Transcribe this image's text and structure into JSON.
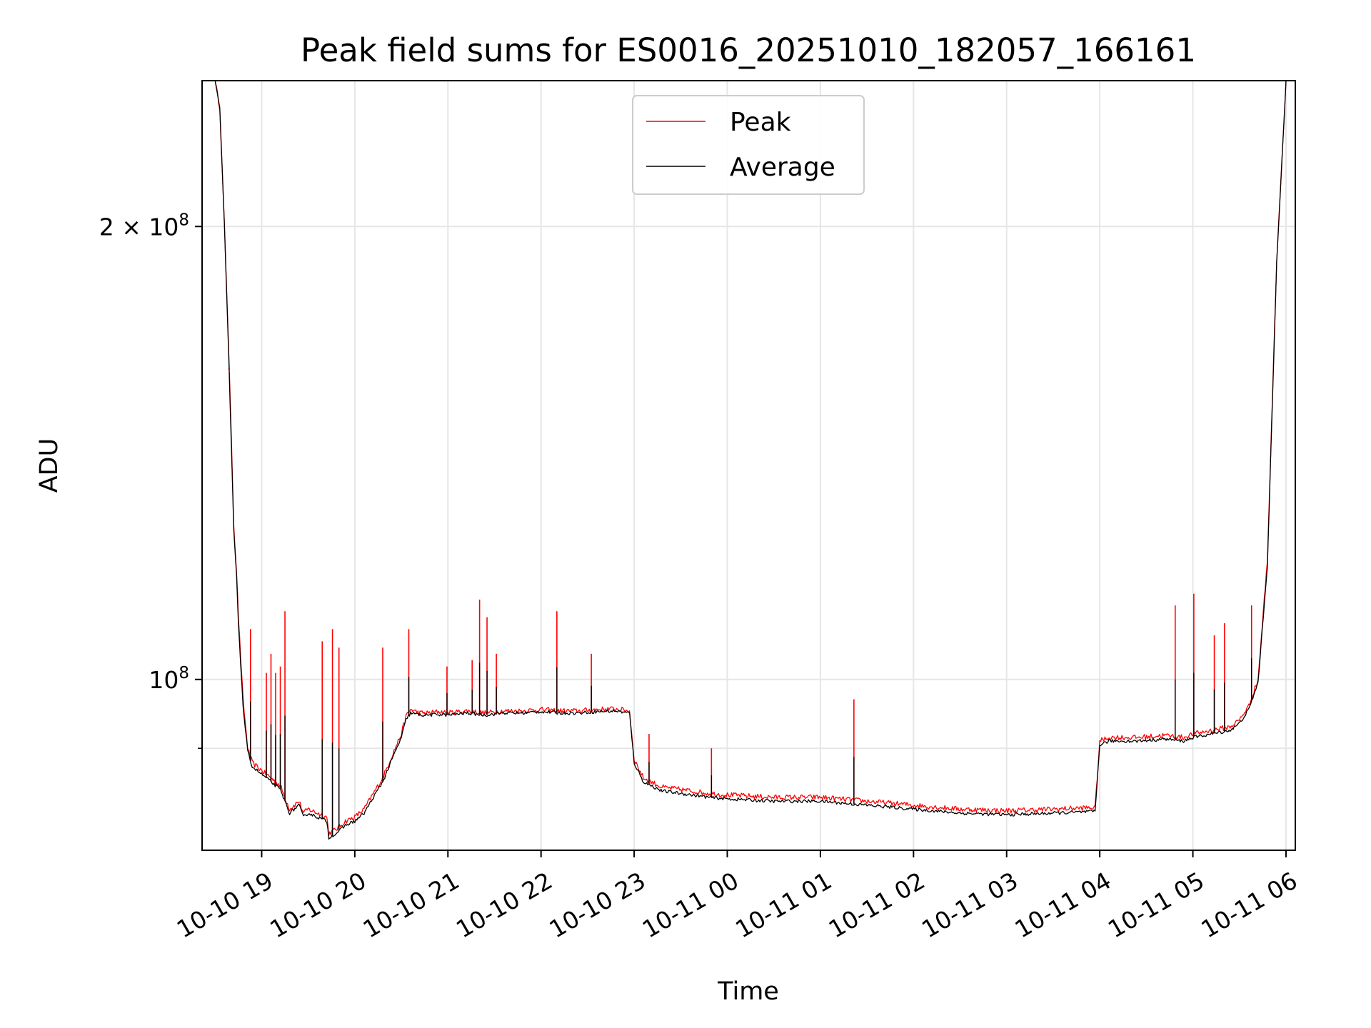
{
  "chart_data": {
    "type": "line",
    "title": "Peak field sums for ES0016_20251010_182057_166161",
    "xlabel": "Time",
    "ylabel": "ADU",
    "yscale": "log",
    "grid": true,
    "legend_position": "top-center",
    "x_range_hours": [
      -0.64,
      11.1
    ],
    "y_range": [
      77000000,
      250000000
    ],
    "x_ticks": [
      {
        "hour": 0,
        "label": "10-10 19"
      },
      {
        "hour": 1,
        "label": "10-10 20"
      },
      {
        "hour": 2,
        "label": "10-10 21"
      },
      {
        "hour": 3,
        "label": "10-10 22"
      },
      {
        "hour": 4,
        "label": "10-10 23"
      },
      {
        "hour": 5,
        "label": "10-11 00"
      },
      {
        "hour": 6,
        "label": "10-11 01"
      },
      {
        "hour": 7,
        "label": "10-11 02"
      },
      {
        "hour": 8,
        "label": "10-11 03"
      },
      {
        "hour": 9,
        "label": "10-11 04"
      },
      {
        "hour": 10,
        "label": "10-11 05"
      },
      {
        "hour": 11,
        "label": "10-11 06"
      }
    ],
    "y_ticks_labeled": [
      {
        "value": 100000000,
        "label": "10^8",
        "base": "10",
        "exp": "8"
      },
      {
        "value": 200000000,
        "label": "2×10^8",
        "base": "2 × 10",
        "exp": "8"
      }
    ],
    "y_minor_gridlines": [
      90000000
    ],
    "series": [
      {
        "name": "Peak",
        "color": "#ff0000",
        "x_hours": [
          -0.5,
          -0.45,
          -0.4,
          -0.35,
          -0.3,
          -0.27,
          -0.25,
          -0.2,
          -0.15,
          -0.1,
          -0.05,
          0,
          0.1,
          0.2,
          0.3,
          0.4,
          0.45,
          0.5,
          0.6,
          0.7,
          0.72,
          0.8,
          0.9,
          1.0,
          1.1,
          1.2,
          1.3,
          1.4,
          1.5,
          1.55,
          1.6,
          1.7,
          1.8,
          1.9,
          2.0,
          2.2,
          2.4,
          2.6,
          2.8,
          3.0,
          3.2,
          3.4,
          3.6,
          3.8,
          3.95,
          4.0,
          4.1,
          4.3,
          4.5,
          4.8,
          5.0,
          5.5,
          6.0,
          6.5,
          7.0,
          7.5,
          8.0,
          8.5,
          8.95,
          9.0,
          9.1,
          9.4,
          9.7,
          9.9,
          10.0,
          10.2,
          10.4,
          10.5,
          10.6,
          10.7,
          10.8,
          10.9,
          11.0
        ],
        "y": [
          250000000,
          240000000,
          200000000,
          163000000,
          127000000,
          118000000,
          110000000,
          97000000,
          90000000,
          88000000,
          87500000,
          87000000,
          86000000,
          85000000,
          82000000,
          83000000,
          81500000,
          82000000,
          81500000,
          81000000,
          79000000,
          79500000,
          80500000,
          81000000,
          82000000,
          84000000,
          86000000,
          89000000,
          92000000,
          94500000,
          95500000,
          95000000,
          95000000,
          95200000,
          95000000,
          95300000,
          95000000,
          95300000,
          95300000,
          95500000,
          95300000,
          95300000,
          95500000,
          95600000,
          95300000,
          88500000,
          86000000,
          84800000,
          84500000,
          84000000,
          83800000,
          83500000,
          83500000,
          83000000,
          82500000,
          82000000,
          81800000,
          82000000,
          82200000,
          91000000,
          91500000,
          91500000,
          91800000,
          91500000,
          92000000,
          92500000,
          93000000,
          94000000,
          96000000,
          100000000,
          120000000,
          190000000,
          250000000
        ]
      },
      {
        "name": "Average",
        "color": "#000000",
        "x_hours": [
          -0.5,
          -0.45,
          -0.4,
          -0.35,
          -0.3,
          -0.27,
          -0.25,
          -0.2,
          -0.15,
          -0.1,
          -0.05,
          0,
          0.1,
          0.2,
          0.3,
          0.4,
          0.45,
          0.5,
          0.6,
          0.7,
          0.72,
          0.8,
          0.9,
          1.0,
          1.1,
          1.2,
          1.3,
          1.4,
          1.5,
          1.55,
          1.6,
          1.7,
          1.8,
          1.9,
          2.0,
          2.2,
          2.4,
          2.6,
          2.8,
          3.0,
          3.2,
          3.4,
          3.6,
          3.8,
          3.95,
          4.0,
          4.1,
          4.3,
          4.5,
          4.8,
          5.0,
          5.5,
          6.0,
          6.5,
          7.0,
          7.5,
          8.0,
          8.5,
          8.95,
          9.0,
          9.1,
          9.4,
          9.7,
          9.9,
          10.0,
          10.2,
          10.4,
          10.5,
          10.6,
          10.7,
          10.8,
          10.9,
          11.0
        ],
        "y": [
          250000000,
          240000000,
          200000000,
          161000000,
          126000000,
          117000000,
          109000000,
          96000000,
          89500000,
          87500000,
          87000000,
          86500000,
          85500000,
          84500000,
          81500000,
          82500000,
          81000000,
          81500000,
          81000000,
          80500000,
          78500000,
          79000000,
          80000000,
          80500000,
          81500000,
          83500000,
          85500000,
          88500000,
          91500000,
          94000000,
          95000000,
          94700000,
          94700000,
          94800000,
          94700000,
          95000000,
          94700000,
          95000000,
          95000000,
          95200000,
          95000000,
          95000000,
          95200000,
          95300000,
          95000000,
          88000000,
          85500000,
          84300000,
          84000000,
          83500000,
          83300000,
          83000000,
          83000000,
          82500000,
          82000000,
          81500000,
          81300000,
          81500000,
          81700000,
          90500000,
          91000000,
          91000000,
          91300000,
          91000000,
          91500000,
          92000000,
          92500000,
          93500000,
          95500000,
          99500000,
          119000000,
          189000000,
          250000000
        ]
      }
    ],
    "peak_spikes": [
      {
        "hour": -0.35,
        "value": 160000000
      },
      {
        "hour": -0.12,
        "value": 108000000
      },
      {
        "hour": 0.05,
        "value": 101000000
      },
      {
        "hour": 0.1,
        "value": 104000000
      },
      {
        "hour": 0.15,
        "value": 101000000
      },
      {
        "hour": 0.2,
        "value": 102000000
      },
      {
        "hour": 0.25,
        "value": 111000000
      },
      {
        "hour": 0.65,
        "value": 106000000
      },
      {
        "hour": 0.76,
        "value": 108000000
      },
      {
        "hour": 0.83,
        "value": 105000000
      },
      {
        "hour": 1.3,
        "value": 105000000
      },
      {
        "hour": 1.58,
        "value": 108000000
      },
      {
        "hour": 1.99,
        "value": 102000000
      },
      {
        "hour": 2.26,
        "value": 103000000
      },
      {
        "hour": 2.34,
        "value": 113000000
      },
      {
        "hour": 2.42,
        "value": 110000000
      },
      {
        "hour": 2.52,
        "value": 104000000
      },
      {
        "hour": 3.17,
        "value": 111000000
      },
      {
        "hour": 3.54,
        "value": 104000000
      },
      {
        "hour": 4.16,
        "value": 92000000
      },
      {
        "hour": 4.83,
        "value": 90000000
      },
      {
        "hour": 6.36,
        "value": 97000000
      },
      {
        "hour": 9.81,
        "value": 112000000
      },
      {
        "hour": 10.01,
        "value": 114000000
      },
      {
        "hour": 10.23,
        "value": 107000000
      },
      {
        "hour": 10.34,
        "value": 109000000
      },
      {
        "hour": 10.63,
        "value": 112000000
      }
    ]
  }
}
